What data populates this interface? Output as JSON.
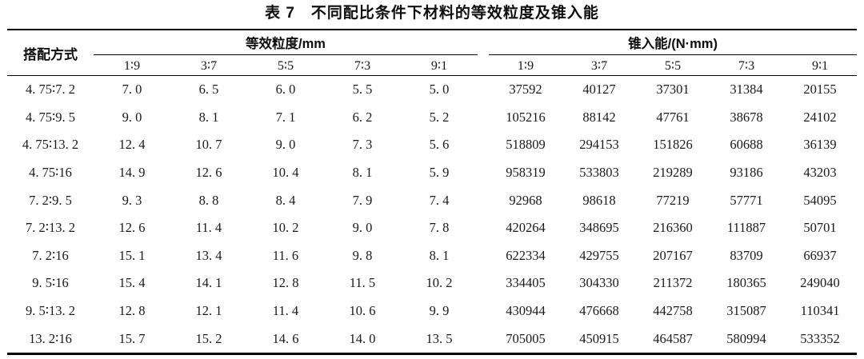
{
  "title": "表 7　不同配比条件下材料的等效粒度及锥入能",
  "table": {
    "row_header": "搭配方式",
    "groups": [
      {
        "label": "等效粒度/mm",
        "columns": [
          "1∶9",
          "3∶7",
          "5∶5",
          "7∶3",
          "9∶1"
        ]
      },
      {
        "label": "锥入能/(N·mm)",
        "columns": [
          "1∶9",
          "3∶7",
          "5∶5",
          "7∶3",
          "9∶1"
        ]
      }
    ],
    "rows": [
      {
        "label": "4. 75∶7. 2",
        "size": [
          "7. 0",
          "6. 5",
          "6. 0",
          "5. 5",
          "5. 0"
        ],
        "energy": [
          "37592",
          "40127",
          "37301",
          "31384",
          "20155"
        ]
      },
      {
        "label": "4. 75∶9. 5",
        "size": [
          "9. 0",
          "8. 1",
          "7. 1",
          "6. 2",
          "5. 2"
        ],
        "energy": [
          "105216",
          "88142",
          "47761",
          "38678",
          "24102"
        ]
      },
      {
        "label": "4. 75∶13. 2",
        "size": [
          "12. 4",
          "10. 7",
          "9. 0",
          "7. 3",
          "5. 6"
        ],
        "energy": [
          "518809",
          "294153",
          "151826",
          "60688",
          "36139"
        ]
      },
      {
        "label": "4. 75∶16",
        "size": [
          "14. 9",
          "12. 6",
          "10. 4",
          "8. 1",
          "5. 9"
        ],
        "energy": [
          "958319",
          "533803",
          "219289",
          "93186",
          "43203"
        ]
      },
      {
        "label": "7. 2∶9. 5",
        "size": [
          "9. 3",
          "8. 8",
          "8. 4",
          "7. 9",
          "7. 4"
        ],
        "energy": [
          "92968",
          "98618",
          "77219",
          "57771",
          "54095"
        ]
      },
      {
        "label": "7. 2∶13. 2",
        "size": [
          "12. 6",
          "11. 4",
          "10. 2",
          "9. 0",
          "7. 8"
        ],
        "energy": [
          "420264",
          "348695",
          "216360",
          "111887",
          "50701"
        ]
      },
      {
        "label": "7. 2∶16",
        "size": [
          "15. 1",
          "13. 4",
          "11. 6",
          "9. 8",
          "8. 1"
        ],
        "energy": [
          "622334",
          "429755",
          "207167",
          "83709",
          "66937"
        ]
      },
      {
        "label": "9. 5∶16",
        "size": [
          "15. 4",
          "14. 1",
          "12. 8",
          "11. 5",
          "10. 2"
        ],
        "energy": [
          "334405",
          "304330",
          "211372",
          "180365",
          "249040"
        ]
      },
      {
        "label": "9. 5∶13. 2",
        "size": [
          "12. 8",
          "12. 1",
          "11. 4",
          "10. 6",
          "9. 9"
        ],
        "energy": [
          "430944",
          "476668",
          "442758",
          "315087",
          "110341"
        ]
      },
      {
        "label": "13. 2∶16",
        "size": [
          "15. 7",
          "15. 2",
          "14. 6",
          "14. 0",
          "13. 5"
        ],
        "energy": [
          "705005",
          "450915",
          "464587",
          "580994",
          "533352"
        ]
      }
    ]
  }
}
